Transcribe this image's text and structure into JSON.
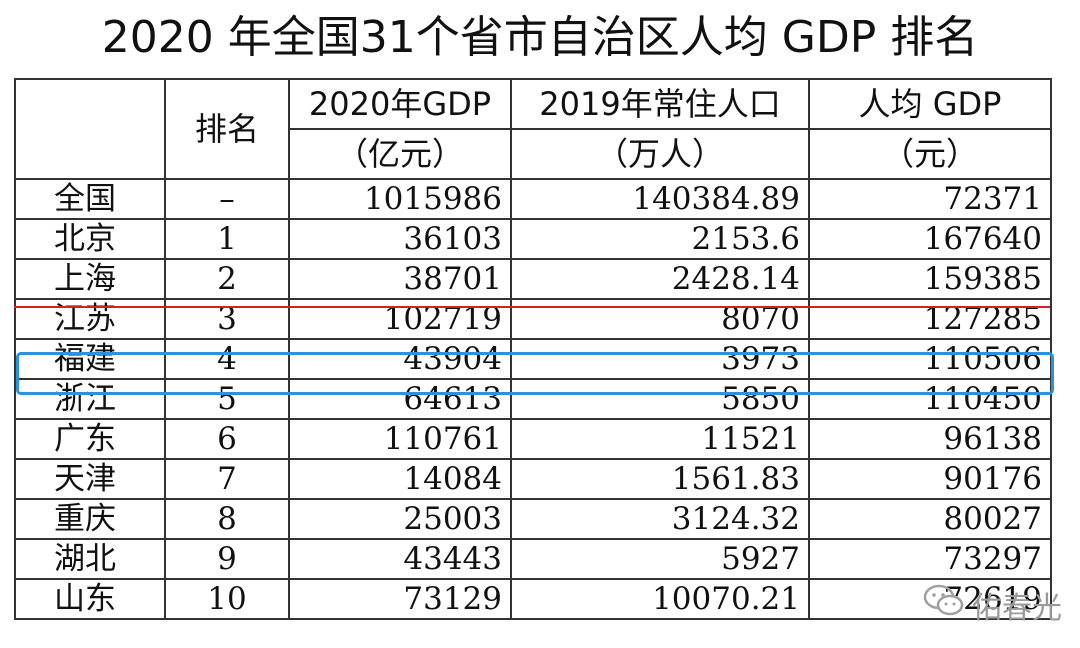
{
  "title": "2020 年全国31个省市自治区人均 GDP 排名",
  "headers": {
    "rank": "排名",
    "gdp": "2020年GDP",
    "gdp_unit": "（亿元）",
    "pop": "2019年常住人口",
    "pop_unit": "（万人）",
    "per": "人均 GDP",
    "per_unit": "（元）"
  },
  "rows": [
    {
      "name": "全国",
      "rank": "–",
      "gdp": "1015986",
      "pop": "140384.89",
      "per": "72371"
    },
    {
      "name": "北京",
      "rank": "1",
      "gdp": "36103",
      "pop": "2153.6",
      "per": "167640"
    },
    {
      "name": "上海",
      "rank": "2",
      "gdp": "38701",
      "pop": "2428.14",
      "per": "159385"
    },
    {
      "name": "江苏",
      "rank": "3",
      "gdp": "102719",
      "pop": "8070",
      "per": "127285"
    },
    {
      "name": "福建",
      "rank": "4",
      "gdp": "43904",
      "pop": "3973",
      "per": "110506"
    },
    {
      "name": "浙江",
      "rank": "5",
      "gdp": "64613",
      "pop": "5850",
      "per": "110450"
    },
    {
      "name": "广东",
      "rank": "6",
      "gdp": "110761",
      "pop": "11521",
      "per": "96138"
    },
    {
      "name": "天津",
      "rank": "7",
      "gdp": "14084",
      "pop": "1561.83",
      "per": "90176"
    },
    {
      "name": "重庆",
      "rank": "8",
      "gdp": "25003",
      "pop": "3124.32",
      "per": "80027"
    },
    {
      "name": "湖北",
      "rank": "9",
      "gdp": "43443",
      "pop": "5927",
      "per": "73297"
    },
    {
      "name": "山东",
      "rank": "10",
      "gdp": "73129",
      "pop": "10070.21",
      "per": "72619"
    }
  ],
  "watermark": "佑春光",
  "colors": {
    "highlight": "#2b93dd",
    "underline": "#d42020"
  }
}
